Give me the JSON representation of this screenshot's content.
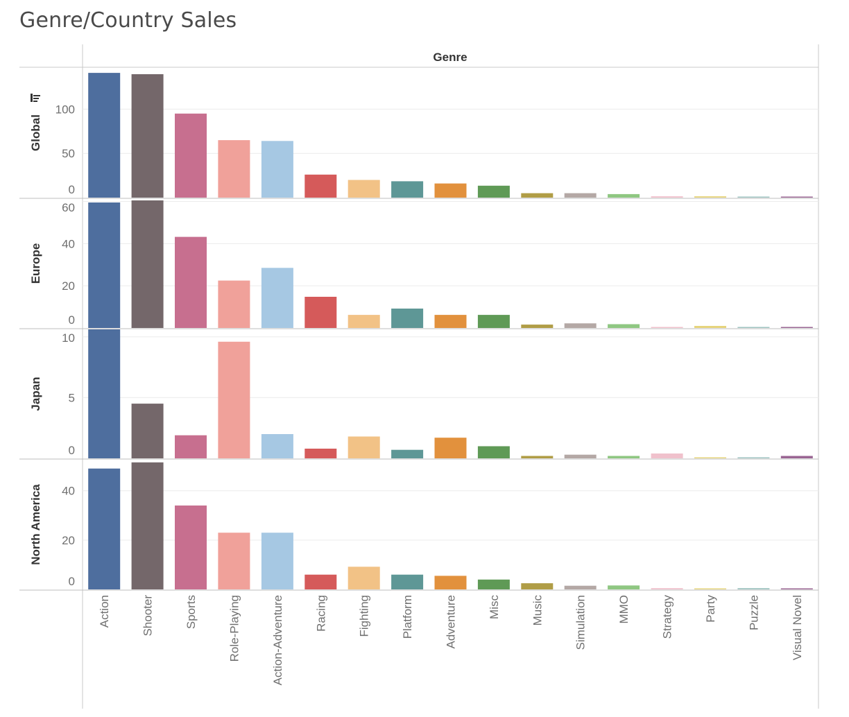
{
  "title": "Genre/Country Sales",
  "chart_data": {
    "type": "bar",
    "column_header": "Genre",
    "categories": [
      "Action",
      "Shooter",
      "Sports",
      "Role-Playing",
      "Action-Adventure",
      "Racing",
      "Fighting",
      "Platform",
      "Adventure",
      "Misc",
      "Music",
      "Simulation",
      "MMO",
      "Strategy",
      "Party",
      "Puzzle",
      "Visual Novel"
    ],
    "colors": [
      "#4e6e9e",
      "#74676a",
      "#c76f8f",
      "#f0a19a",
      "#a6c8e3",
      "#d55a5a",
      "#f2c286",
      "#5e9796",
      "#e2913d",
      "#5f9a56",
      "#b09d46",
      "#b4a8a5",
      "#8fc782",
      "#f0c1cc",
      "#e6d47c",
      "#9ec3c0",
      "#9a6593"
    ],
    "panels": [
      {
        "name": "Global",
        "ylim": [
          0,
          145
        ],
        "ticks": [
          0,
          50,
          100
        ],
        "values": [
          141,
          139.5,
          95,
          65,
          64,
          26,
          20,
          18.5,
          16,
          13.5,
          5,
          5,
          4,
          1.5,
          1.5,
          0.5,
          0.3
        ]
      },
      {
        "name": "Europe",
        "ylim": [
          0,
          60.5
        ],
        "ticks": [
          0,
          20,
          40,
          60
        ],
        "values": [
          59.5,
          60.5,
          43.2,
          22.5,
          28.5,
          14.8,
          6.2,
          9.2,
          6.2,
          6.2,
          1.6,
          2.2,
          1.8,
          0.2,
          1.0,
          0.2,
          0.1
        ]
      },
      {
        "name": "Japan",
        "ylim": [
          0,
          10.5
        ],
        "ticks": [
          0,
          5,
          10
        ],
        "values": [
          10.8,
          4.5,
          1.9,
          9.6,
          2.0,
          0.8,
          1.8,
          0.7,
          1.7,
          1.0,
          0.2,
          0.3,
          0.2,
          0.4,
          0.05,
          0.05,
          0.2
        ]
      },
      {
        "name": "North America",
        "ylim": [
          0,
          52
        ],
        "ticks": [
          0,
          20,
          40
        ],
        "values": [
          49,
          51.5,
          34,
          23,
          23,
          6,
          9.2,
          6,
          5.5,
          4,
          2.5,
          1.5,
          1.6,
          0.5,
          0.1,
          0.5,
          0.05
        ]
      }
    ]
  }
}
